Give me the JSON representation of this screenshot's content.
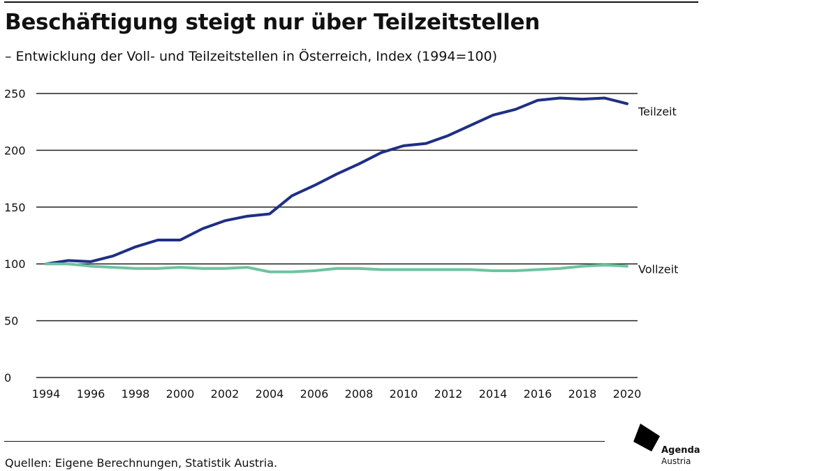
{
  "title": "Beschäftigung steigt nur über Teilzeitstellen",
  "subtitle": "– Entwicklung der Voll- und Teilzeitstellen in Österreich, Index (1994=100)",
  "source": "Quellen: Eigene Berechnungen, Statistik Austria.",
  "logo": {
    "line1": "Agenda",
    "line2": "Austria"
  },
  "chart_data": {
    "type": "line",
    "title": "Beschäftigung steigt nur über Teilzeitstellen",
    "subtitle": "– Entwicklung der Voll- und Teilzeitstellen in Österreich, Index (1994=100)",
    "x": [
      1994,
      1995,
      1996,
      1997,
      1998,
      1999,
      2000,
      2001,
      2002,
      2003,
      2004,
      2005,
      2006,
      2007,
      2008,
      2009,
      2010,
      2011,
      2012,
      2013,
      2014,
      2015,
      2016,
      2017,
      2018,
      2019,
      2020
    ],
    "xticks": [
      "1994",
      "1996",
      "1998",
      "2000",
      "2002",
      "2004",
      "2006",
      "2008",
      "2010",
      "2012",
      "2014",
      "2016",
      "2018",
      "2020"
    ],
    "yticks": [
      "0",
      "50",
      "100",
      "150",
      "200",
      "250"
    ],
    "ylim": [
      0,
      250
    ],
    "grid": true,
    "legend": "direct labels at line ends",
    "series": [
      {
        "name": "Teilzeit",
        "color": "#1f2f86",
        "values": [
          100,
          103,
          102,
          107,
          115,
          121,
          121,
          131,
          138,
          142,
          144,
          160,
          169,
          179,
          188,
          198,
          204,
          206,
          213,
          222,
          231,
          236,
          244,
          246,
          245,
          246,
          241
        ]
      },
      {
        "name": "Vollzeit",
        "color": "#6cc4a0",
        "values": [
          100,
          100,
          98,
          97,
          96,
          96,
          97,
          96,
          96,
          97,
          93,
          93,
          94,
          96,
          96,
          95,
          95,
          95,
          95,
          95,
          94,
          94,
          95,
          96,
          98,
          99,
          98
        ]
      }
    ]
  }
}
